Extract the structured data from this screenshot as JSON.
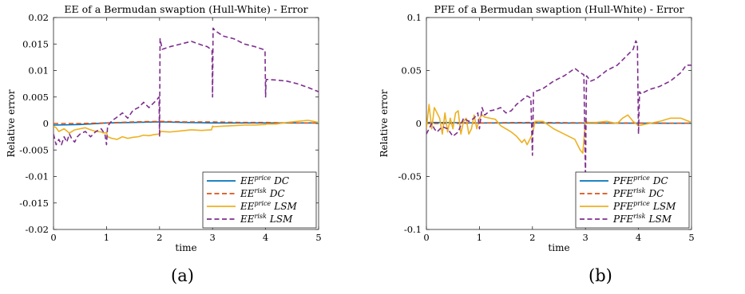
{
  "captions": [
    "(a)",
    "(b)"
  ],
  "chart_data": [
    {
      "type": "line",
      "title": "EE of a Bermudan swaption (Hull-White) - Error",
      "xlabel": "time",
      "ylabel": "Relative error",
      "xlim": [
        0,
        5
      ],
      "ylim": [
        -0.02,
        0.02
      ],
      "xticks": [
        0,
        1,
        2,
        3,
        4,
        5
      ],
      "yticks": [
        -0.02,
        -0.015,
        -0.01,
        -0.005,
        0,
        0.005,
        0.01,
        0.015,
        0.02
      ],
      "ytick_labels": [
        "-0.02",
        "-0.015",
        "-0.01",
        "-0.005",
        "0",
        "0.005",
        "0.01",
        "0.015",
        "0.02"
      ],
      "grid": false,
      "legend_position": "bottom-right",
      "series": [
        {
          "name": "EE^price DC",
          "legend_base": "EE",
          "legend_sup": "price",
          "legend_sub": "DC",
          "color": "#0072BD",
          "dash": "solid",
          "x": [
            0,
            0.5,
            1,
            1.5,
            2,
            2.5,
            3,
            3.5,
            4,
            4.5,
            5
          ],
          "y": [
            -0.0003,
            -0.0002,
            0.0001,
            0.0002,
            0.0003,
            0.0002,
            0.0001,
            0.0001,
            0.0001,
            0.0001,
            0.0001
          ]
        },
        {
          "name": "EE^risk DC",
          "legend_base": "EE",
          "legend_sup": "risk",
          "legend_sub": "DC",
          "color": "#D95319",
          "dash": "dashed",
          "x": [
            0,
            0.5,
            1,
            1.5,
            2,
            2.5,
            3,
            3.5,
            4,
            4.5,
            5
          ],
          "y": [
            0,
            0,
            0.0001,
            0.0003,
            0.0004,
            0.0003,
            0.0003,
            0.0002,
            0.0002,
            0.0001,
            0.0001
          ]
        },
        {
          "name": "EE^price LSM",
          "legend_base": "EE",
          "legend_sup": "price",
          "legend_sub": "LSM",
          "color": "#EDB120",
          "dash": "solid",
          "x": [
            0,
            0.05,
            0.1,
            0.2,
            0.3,
            0.4,
            0.5,
            0.6,
            0.7,
            0.8,
            0.9,
            0.95,
            1.0,
            1.02,
            1.1,
            1.2,
            1.3,
            1.4,
            1.5,
            1.6,
            1.7,
            1.8,
            1.9,
            1.98,
            2.0,
            2.02,
            2.2,
            2.4,
            2.6,
            2.8,
            2.98,
            3.0,
            3.02,
            3.2,
            3.4,
            3.6,
            3.8,
            3.98,
            4.0,
            4.02,
            4.2,
            4.4,
            4.6,
            4.8,
            4.9,
            5.0
          ],
          "y": [
            -0.0005,
            -0.0008,
            -0.0015,
            -0.001,
            -0.0018,
            -0.0012,
            -0.001,
            -0.0008,
            -0.0012,
            -0.0015,
            -0.0016,
            -0.0018,
            -0.0017,
            -0.0025,
            -0.0028,
            -0.003,
            -0.0025,
            -0.0028,
            -0.0026,
            -0.0025,
            -0.0022,
            -0.0023,
            -0.0021,
            -0.002,
            -0.002,
            -0.0015,
            -0.0016,
            -0.0014,
            -0.0012,
            -0.0013,
            -0.0012,
            -0.0005,
            -0.0006,
            -0.0005,
            -0.0004,
            -0.0003,
            -0.0003,
            -0.0002,
            -0.0002,
            -0.0001,
            -0.0001,
            0.0002,
            0.0004,
            0.0006,
            0.0004,
            0.0002
          ]
        },
        {
          "name": "EE^risk LSM",
          "legend_base": "EE",
          "legend_sup": "risk",
          "legend_sub": "LSM",
          "color": "#7E2F8E",
          "dash": "dashed",
          "x": [
            0,
            0.05,
            0.1,
            0.15,
            0.2,
            0.25,
            0.3,
            0.35,
            0.4,
            0.45,
            0.5,
            0.6,
            0.7,
            0.8,
            0.9,
            0.97,
            1.0,
            1.02,
            1.1,
            1.2,
            1.3,
            1.4,
            1.5,
            1.6,
            1.7,
            1.8,
            1.9,
            1.95,
            1.99,
            2.0,
            2.01,
            2.05,
            2.2,
            2.4,
            2.6,
            2.8,
            2.9,
            2.97,
            2.99,
            3.0,
            3.01,
            3.05,
            3.2,
            3.4,
            3.6,
            3.8,
            3.95,
            3.99,
            4.0,
            4.01,
            4.05,
            4.2,
            4.4,
            4.6,
            4.8,
            5.0
          ],
          "y": [
            -0.002,
            -0.004,
            -0.003,
            -0.004,
            -0.0025,
            -0.0035,
            -0.002,
            -0.003,
            -0.0035,
            -0.0025,
            -0.002,
            -0.0015,
            -0.0025,
            -0.0015,
            -0.001,
            -0.002,
            -0.004,
            -0.0005,
            0.0005,
            0.0012,
            0.002,
            0.001,
            0.0025,
            0.003,
            0.004,
            0.003,
            0.004,
            0.0045,
            0.005,
            -0.0025,
            0.016,
            0.014,
            0.0145,
            0.015,
            0.0155,
            0.0148,
            0.0145,
            0.014,
            0.0138,
            0.005,
            0.018,
            0.0175,
            0.0165,
            0.016,
            0.015,
            0.0145,
            0.014,
            0.0138,
            0.005,
            0.0083,
            0.0083,
            0.0082,
            0.008,
            0.0075,
            0.0068,
            0.006
          ]
        }
      ]
    },
    {
      "type": "line",
      "title": "PFE of a Bermudan swaption (Hull-White) - Error",
      "xlabel": "time",
      "ylabel": "Relative error",
      "xlim": [
        0,
        5
      ],
      "ylim": [
        -0.1,
        0.1
      ],
      "xticks": [
        0,
        1,
        2,
        3,
        4,
        5
      ],
      "yticks": [
        -0.1,
        -0.05,
        0,
        0.05,
        0.1
      ],
      "ytick_labels": [
        "-0.1",
        "-0.05",
        "0",
        "0.05",
        "0.1"
      ],
      "grid": false,
      "legend_position": "bottom-right",
      "series": [
        {
          "name": "PFE^price DC",
          "legend_base": "PFE",
          "legend_sup": "price",
          "legend_sub": "DC",
          "color": "#0072BD",
          "dash": "solid",
          "x": [
            0,
            0.5,
            1,
            1.5,
            2,
            2.5,
            3,
            3.5,
            4,
            4.5,
            5
          ],
          "y": [
            0.001,
            0.0008,
            0.0005,
            0.0005,
            0.0005,
            0.0004,
            0.0004,
            0.0003,
            0.0003,
            0.0002,
            0.0002
          ]
        },
        {
          "name": "PFE^risk DC",
          "legend_base": "PFE",
          "legend_sup": "risk",
          "legend_sub": "DC",
          "color": "#D95319",
          "dash": "dashed",
          "x": [
            0,
            0.5,
            1,
            1.5,
            2,
            2.5,
            3,
            3.5,
            4,
            4.5,
            5
          ],
          "y": [
            0,
            0,
            0.0005,
            0.0008,
            0.001,
            0.0008,
            0.0006,
            0.0005,
            0.0004,
            0.0003,
            0.0002
          ]
        },
        {
          "name": "PFE^price LSM",
          "legend_base": "PFE",
          "legend_sup": "price",
          "legend_sub": "LSM",
          "color": "#EDB120",
          "dash": "solid",
          "x": [
            0,
            0.05,
            0.1,
            0.15,
            0.2,
            0.25,
            0.3,
            0.35,
            0.4,
            0.45,
            0.5,
            0.55,
            0.6,
            0.65,
            0.7,
            0.75,
            0.8,
            0.85,
            0.9,
            0.95,
            1.0,
            1.05,
            1.1,
            1.2,
            1.3,
            1.4,
            1.5,
            1.6,
            1.7,
            1.8,
            1.85,
            1.9,
            1.95,
            2.0,
            2.05,
            2.2,
            2.4,
            2.6,
            2.8,
            2.9,
            2.95,
            3.0,
            3.05,
            3.2,
            3.4,
            3.6,
            3.7,
            3.8,
            3.9,
            4.0,
            4.2,
            4.4,
            4.6,
            4.8,
            5.0
          ],
          "y": [
            -0.005,
            0.018,
            -0.005,
            0.015,
            0.01,
            0.005,
            -0.01,
            0.01,
            -0.008,
            0.005,
            -0.005,
            0.01,
            0.012,
            -0.01,
            0.002,
            0.005,
            -0.01,
            -0.005,
            0.008,
            -0.005,
            0.005,
            0.008,
            0.006,
            0.005,
            0.004,
            -0.002,
            -0.005,
            -0.008,
            -0.012,
            -0.018,
            -0.015,
            -0.02,
            -0.015,
            -0.01,
            0.002,
            0.002,
            -0.005,
            -0.01,
            -0.015,
            -0.025,
            -0.028,
            0.002,
            0.001,
            0.001,
            0.002,
            0.0,
            0.005,
            0.008,
            0.002,
            -0.002,
            0.0,
            0.002,
            0.005,
            0.005,
            0.001
          ]
        },
        {
          "name": "PFE^risk LSM",
          "legend_base": "PFE",
          "legend_sup": "risk",
          "legend_sub": "LSM",
          "color": "#7E2F8E",
          "dash": "dashed",
          "x": [
            0,
            0.05,
            0.1,
            0.15,
            0.2,
            0.3,
            0.4,
            0.5,
            0.6,
            0.7,
            0.8,
            0.9,
            0.97,
            1.0,
            1.05,
            1.1,
            1.2,
            1.3,
            1.4,
            1.5,
            1.6,
            1.7,
            1.8,
            1.9,
            1.97,
            2.0,
            2.02,
            2.1,
            2.2,
            2.4,
            2.6,
            2.8,
            2.9,
            2.97,
            3.0,
            3.02,
            3.1,
            3.2,
            3.4,
            3.6,
            3.8,
            3.9,
            3.95,
            3.98,
            4.0,
            4.02,
            4.05,
            4.2,
            4.4,
            4.6,
            4.8,
            4.9,
            5.0
          ],
          "y": [
            -0.01,
            -0.005,
            0.0,
            -0.005,
            -0.008,
            -0.003,
            -0.005,
            -0.012,
            -0.008,
            0.005,
            0.002,
            0.005,
            0.01,
            -0.005,
            0.015,
            0.008,
            0.012,
            0.013,
            0.015,
            0.01,
            0.012,
            0.018,
            0.022,
            0.026,
            0.024,
            -0.03,
            0.03,
            0.031,
            0.033,
            0.04,
            0.045,
            0.052,
            0.048,
            0.046,
            -0.05,
            0.045,
            0.04,
            0.042,
            0.05,
            0.055,
            0.065,
            0.07,
            0.078,
            0.075,
            -0.01,
            0.03,
            0.028,
            0.032,
            0.035,
            0.04,
            0.048,
            0.055,
            0.055
          ]
        }
      ]
    }
  ]
}
